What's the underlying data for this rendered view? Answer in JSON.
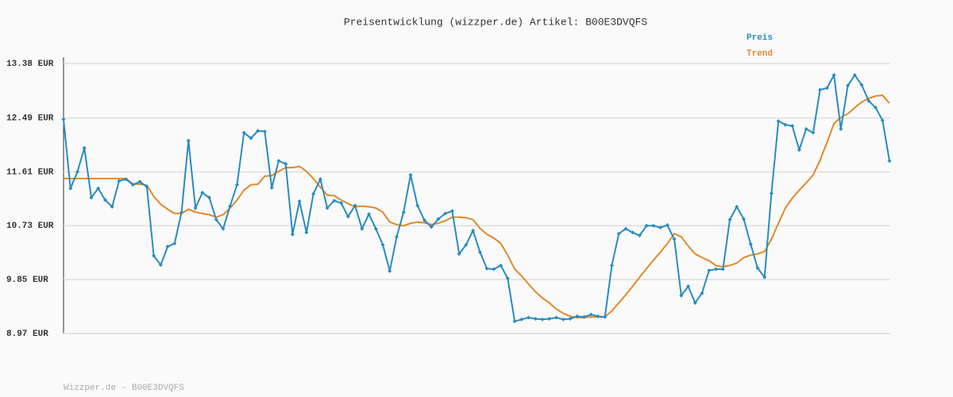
{
  "chart_data": {
    "type": "line",
    "title": "Preisentwicklung (wizzper.de) Artikel: B00E3DVQFS",
    "source": "Wizzper.de - B00E3DVQFS",
    "ylim": [
      8.97,
      13.38
    ],
    "yticks": [
      {
        "value": 8.97,
        "label": "8.97 EUR"
      },
      {
        "value": 9.85,
        "label": "9.85 EUR"
      },
      {
        "value": 10.73,
        "label": "10.73 EUR"
      },
      {
        "value": 11.61,
        "label": "11.61 EUR"
      },
      {
        "value": 12.49,
        "label": "12.49 EUR"
      },
      {
        "value": 13.38,
        "label": "13.38 EUR"
      }
    ],
    "grid": true,
    "series": [
      {
        "name": "Preis",
        "color": "#2a8bc0",
        "markers": true,
        "values": [
          12.47,
          11.34,
          11.61,
          12.0,
          11.19,
          11.34,
          11.15,
          11.04,
          11.46,
          11.49,
          11.4,
          11.45,
          11.37,
          10.24,
          10.09,
          10.39,
          10.44,
          10.95,
          12.12,
          11.02,
          11.27,
          11.19,
          10.83,
          10.68,
          11.05,
          11.4,
          12.25,
          12.16,
          12.28,
          12.27,
          11.35,
          11.79,
          11.74,
          10.59,
          11.13,
          10.62,
          11.25,
          11.49,
          11.02,
          11.14,
          11.1,
          10.88,
          11.06,
          10.68,
          10.92,
          10.68,
          10.42,
          9.99,
          10.55,
          10.95,
          11.56,
          11.06,
          10.82,
          10.71,
          10.84,
          10.93,
          10.97,
          10.27,
          10.42,
          10.65,
          10.3,
          10.03,
          10.02,
          10.08,
          9.87,
          9.17,
          9.2,
          9.23,
          9.21,
          9.2,
          9.21,
          9.23,
          9.2,
          9.21,
          9.25,
          9.24,
          9.28,
          9.25,
          9.24,
          10.08,
          10.6,
          10.68,
          10.62,
          10.57,
          10.73,
          10.73,
          10.7,
          10.74,
          10.51,
          9.59,
          9.74,
          9.47,
          9.63,
          10.0,
          10.02,
          10.02,
          10.83,
          11.04,
          10.84,
          10.43,
          10.04,
          9.89,
          11.26,
          12.44,
          12.38,
          12.36,
          11.97,
          12.31,
          12.25,
          12.95,
          12.98,
          13.19,
          12.31,
          13.02,
          13.19,
          13.03,
          12.77,
          12.66,
          12.45,
          11.79
        ]
      },
      {
        "name": "Trend",
        "color": "#e0892a",
        "markers": false,
        "values": [
          11.5,
          11.5,
          11.5,
          11.5,
          11.5,
          11.5,
          11.5,
          11.5,
          11.5,
          11.5,
          11.41,
          11.41,
          11.39,
          11.21,
          11.08,
          11.0,
          10.93,
          10.93,
          11.0,
          10.95,
          10.93,
          10.91,
          10.87,
          10.91,
          11.02,
          11.15,
          11.31,
          11.4,
          11.41,
          11.54,
          11.55,
          11.62,
          11.68,
          11.68,
          11.7,
          11.62,
          11.5,
          11.36,
          11.23,
          11.22,
          11.15,
          11.09,
          11.04,
          11.05,
          11.04,
          11.02,
          10.95,
          10.79,
          10.75,
          10.73,
          10.77,
          10.79,
          10.78,
          10.75,
          10.77,
          10.81,
          10.87,
          10.87,
          10.86,
          10.83,
          10.69,
          10.59,
          10.53,
          10.44,
          10.25,
          10.02,
          9.91,
          9.78,
          9.65,
          9.55,
          9.47,
          9.37,
          9.3,
          9.25,
          9.23,
          9.23,
          9.24,
          9.24,
          9.24,
          9.34,
          9.47,
          9.6,
          9.74,
          9.89,
          10.03,
          10.17,
          10.3,
          10.44,
          10.6,
          10.55,
          10.4,
          10.27,
          10.21,
          10.16,
          10.08,
          10.06,
          10.08,
          10.12,
          10.21,
          10.25,
          10.27,
          10.31,
          10.51,
          10.77,
          11.02,
          11.18,
          11.31,
          11.43,
          11.56,
          11.8,
          12.09,
          12.4,
          12.5,
          12.56,
          12.66,
          12.75,
          12.81,
          12.85,
          12.86,
          12.73
        ]
      }
    ]
  }
}
